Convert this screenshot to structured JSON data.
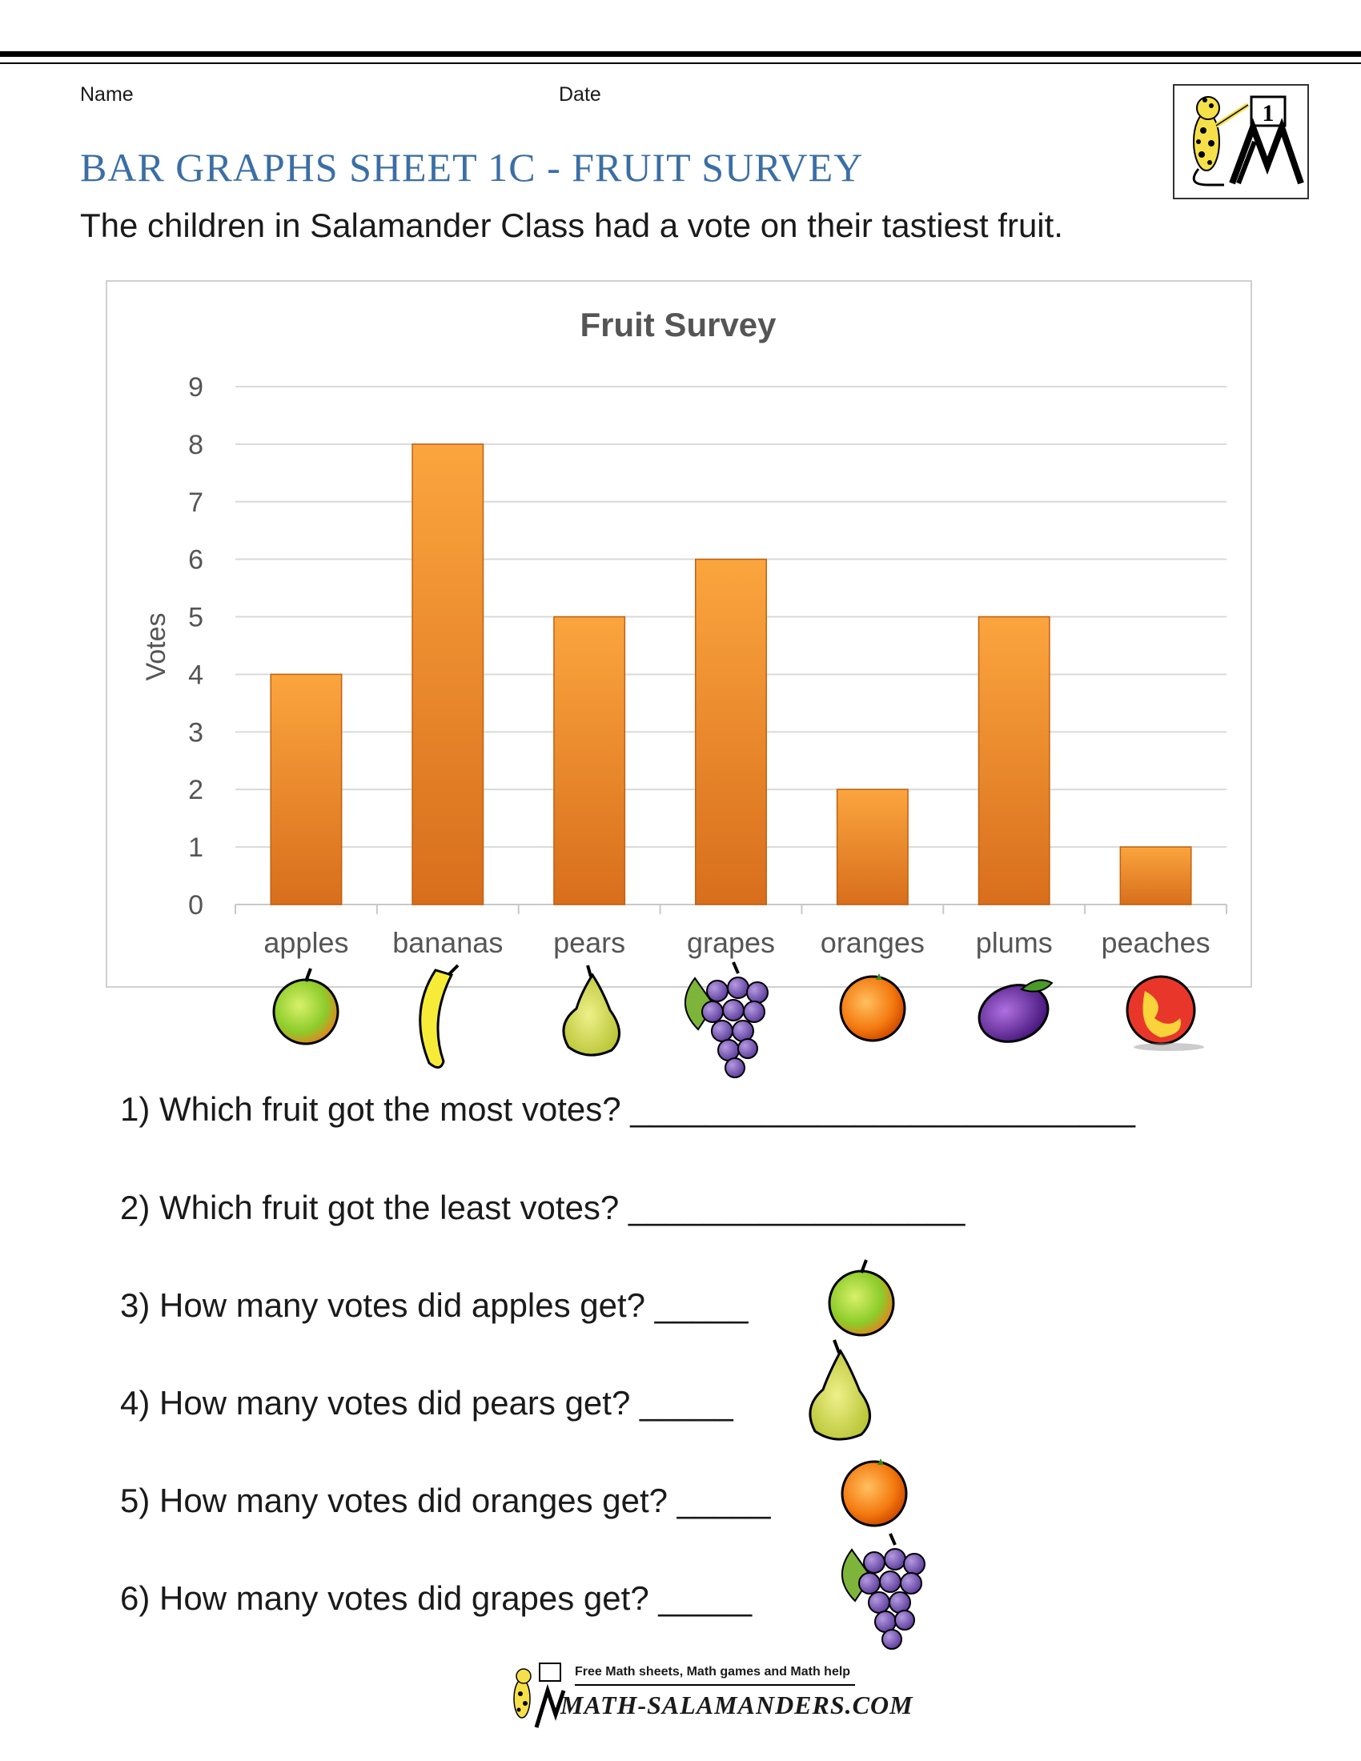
{
  "header": {
    "name_label": "Name",
    "date_label": "Date",
    "logo_badge": "1"
  },
  "title": "BAR GRAPHS SHEET 1C - FRUIT SURVEY",
  "intro": "The children in Salamander Class had a vote on their tastiest fruit.",
  "chart_data": {
    "type": "bar",
    "title": "Fruit Survey",
    "xlabel": "",
    "ylabel": "Votes",
    "categories": [
      "apples",
      "bananas",
      "pears",
      "grapes",
      "oranges",
      "plums",
      "peaches"
    ],
    "values": [
      4,
      8,
      5,
      6,
      2,
      5,
      1
    ],
    "ylim": [
      0,
      9
    ],
    "yticks": [
      0,
      1,
      2,
      3,
      4,
      5,
      6,
      7,
      8,
      9
    ],
    "grid": true,
    "bar_color": "#f0892a",
    "legend": "none",
    "category_icons": [
      "apple-icon",
      "banana-icon",
      "pear-icon",
      "grapes-icon",
      "orange-icon",
      "plum-icon",
      "peach-icon"
    ]
  },
  "questions": [
    {
      "text": "1) Which fruit got the most votes? ___________________________",
      "icon": ""
    },
    {
      "text": "2) Which fruit got the least votes? __________________",
      "icon": ""
    },
    {
      "text": "3) How many votes did apples get? _____",
      "icon": "apple-icon"
    },
    {
      "text": "4) How many votes did pears get? _____",
      "icon": "pear-icon"
    },
    {
      "text": "5) How many votes did oranges get? _____",
      "icon": "orange-icon"
    },
    {
      "text": "6) How many votes did grapes get? _____",
      "icon": "grapes-icon"
    }
  ],
  "footer": {
    "tagline": "Free Math sheets, Math games and Math help",
    "site": "MATH-SALAMANDERS.COM"
  }
}
